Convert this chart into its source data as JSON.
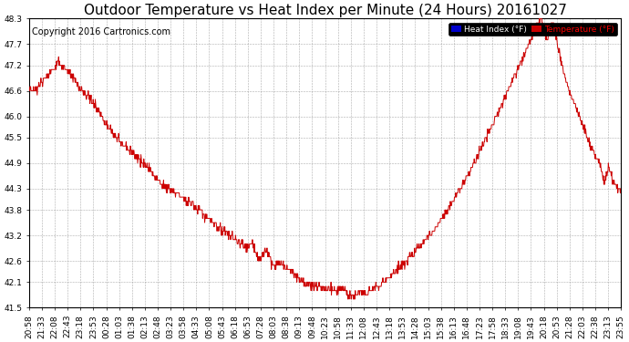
{
  "title": "Outdoor Temperature vs Heat Index per Minute (24 Hours) 20161027",
  "copyright": "Copyright 2016 Cartronics.com",
  "legend_heat_index": "Heat Index (°F)",
  "legend_temperature": "Temperature (°F)",
  "background_color": "#ffffff",
  "plot_bg_color": "#ffffff",
  "grid_color": "#999999",
  "line_color": "#cc0000",
  "ylim": [
    41.5,
    48.3
  ],
  "yticks": [
    41.5,
    42.1,
    42.6,
    43.2,
    43.8,
    44.3,
    44.9,
    45.5,
    46.0,
    46.6,
    47.2,
    47.7,
    48.3
  ],
  "x_labels": [
    "20:58",
    "21:33",
    "22:08",
    "22:43",
    "23:18",
    "23:53",
    "00:28",
    "01:03",
    "01:38",
    "02:13",
    "02:48",
    "03:23",
    "03:58",
    "04:33",
    "05:08",
    "05:43",
    "06:18",
    "06:53",
    "07:28",
    "08:03",
    "08:38",
    "09:13",
    "09:48",
    "10:23",
    "10:58",
    "11:33",
    "12:08",
    "12:43",
    "13:18",
    "13:53",
    "14:28",
    "15:03",
    "15:38",
    "16:13",
    "16:48",
    "17:23",
    "17:58",
    "18:33",
    "19:08",
    "19:43",
    "20:18",
    "20:53",
    "21:28",
    "22:03",
    "22:38",
    "23:13",
    "23:55"
  ],
  "title_fontsize": 11,
  "tick_fontsize": 6.5,
  "copyright_fontsize": 7
}
